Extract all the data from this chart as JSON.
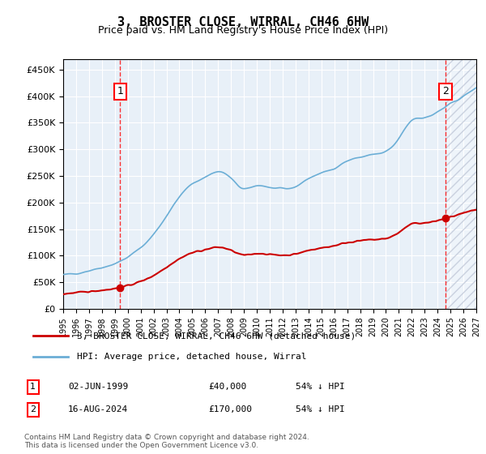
{
  "title": "3, BROSTER CLOSE, WIRRAL, CH46 6HW",
  "subtitle": "Price paid vs. HM Land Registry's House Price Index (HPI)",
  "hpi_years": [
    1995,
    1996,
    1997,
    1998,
    1999,
    2000,
    2001,
    2002,
    2003,
    2004,
    2005,
    2006,
    2007,
    2008,
    2009,
    2010,
    2011,
    2012,
    2013,
    2014,
    2015,
    2016,
    2017,
    2018,
    2019,
    2020,
    2021,
    2022,
    2023,
    2024,
    2025,
    2026,
    2027
  ],
  "hpi_values": [
    63000,
    67000,
    72000,
    78000,
    85000,
    97000,
    115000,
    140000,
    175000,
    210000,
    235000,
    248000,
    258000,
    245000,
    225000,
    232000,
    228000,
    225000,
    230000,
    245000,
    255000,
    265000,
    278000,
    285000,
    290000,
    295000,
    320000,
    355000,
    360000,
    370000,
    385000,
    400000,
    415000
  ],
  "sale1_year": 1999.42,
  "sale1_price": 40000,
  "sale2_year": 2024.62,
  "sale2_price": 170000,
  "hpi_color": "#6baed6",
  "sale_color": "#cc0000",
  "marker1_label": "1",
  "marker2_label": "2",
  "sale1_date": "02-JUN-1999",
  "sale1_amount": "£40,000",
  "sale1_hpi": "54% ↓ HPI",
  "sale2_date": "16-AUG-2024",
  "sale2_amount": "£170,000",
  "sale2_hpi": "54% ↓ HPI",
  "legend1": "3, BROSTER CLOSE, WIRRAL, CH46 6HW (detached house)",
  "legend2": "HPI: Average price, detached house, Wirral",
  "footnote": "Contains HM Land Registry data © Crown copyright and database right 2024.\nThis data is licensed under the Open Government Licence v3.0.",
  "ylim": [
    0,
    470000
  ],
  "yticks": [
    0,
    50000,
    100000,
    150000,
    200000,
    250000,
    300000,
    350000,
    400000,
    450000
  ],
  "background_color": "#e8f0f8",
  "hatch_color": "#c0c8d8"
}
